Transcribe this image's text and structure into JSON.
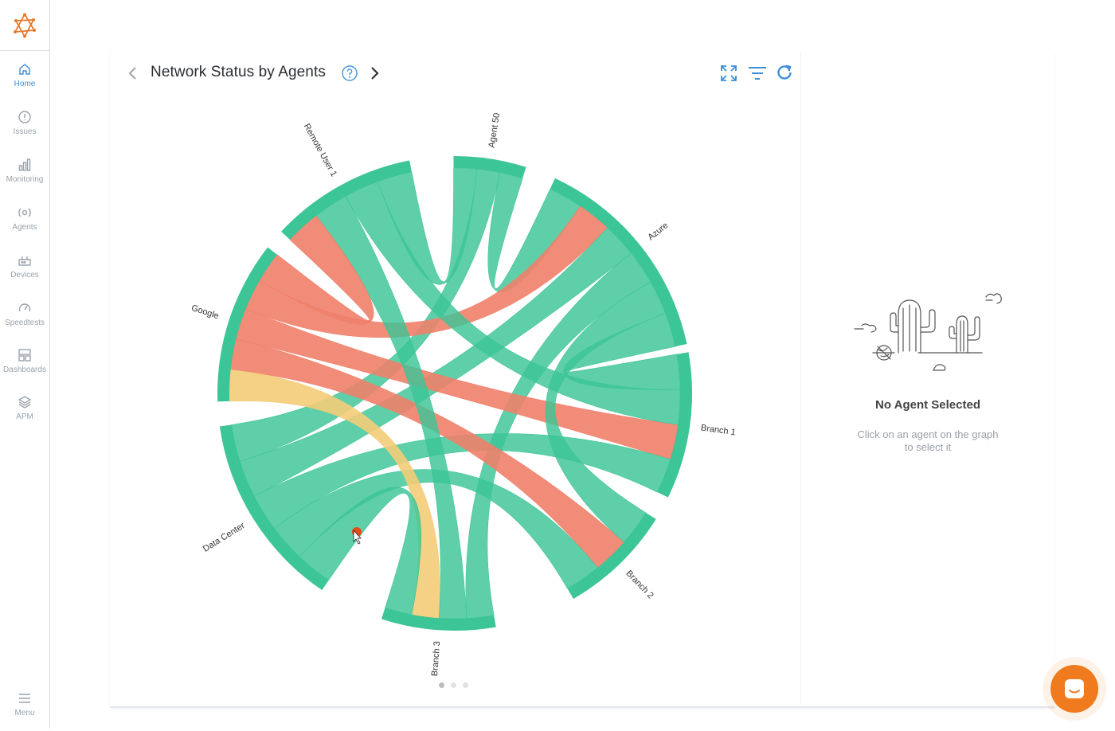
{
  "sidebar": {
    "items": [
      {
        "label": "Home",
        "icon": "home-icon",
        "active": true
      },
      {
        "label": "Issues",
        "icon": "alert-circle-icon",
        "active": false
      },
      {
        "label": "Monitoring",
        "icon": "bar-chart-icon",
        "active": false
      },
      {
        "label": "Agents",
        "icon": "broadcast-icon",
        "active": false
      },
      {
        "label": "Devices",
        "icon": "router-icon",
        "active": false
      },
      {
        "label": "Speedtests",
        "icon": "gauge-icon",
        "active": false
      },
      {
        "label": "Dashboards",
        "icon": "dashboard-icon",
        "active": false
      },
      {
        "label": "APM",
        "icon": "layers-icon",
        "active": false
      }
    ],
    "menu_label": "Menu"
  },
  "widget": {
    "title": "Network Status by Agents",
    "help_icon": "help-circle-icon",
    "toolbar_icons": [
      "expand-icon",
      "filter-icon",
      "refresh-icon"
    ],
    "pager_dots": 3,
    "active_dot": 0
  },
  "colors": {
    "ok": "#3cc596",
    "error": "#f0806a",
    "warning": "#f3cc78",
    "accent": "#3d8fd8",
    "chat": "#f07b1f"
  },
  "chart_data": {
    "type": "chord",
    "agents": [
      "Agent 50",
      "Azure",
      "Branch 1",
      "Branch 2",
      "Branch 3",
      "Data Center",
      "Google",
      "Remote User 1"
    ],
    "links": [
      {
        "source": "Agent 50",
        "target": "Azure",
        "status": "ok"
      },
      {
        "source": "Agent 50",
        "target": "Data Center",
        "status": "ok"
      },
      {
        "source": "Agent 50",
        "target": "Remote User 1",
        "status": "ok"
      },
      {
        "source": "Azure",
        "target": "Google",
        "status": "error"
      },
      {
        "source": "Azure",
        "target": "Branch 1",
        "status": "ok"
      },
      {
        "source": "Azure",
        "target": "Branch 3",
        "status": "ok"
      },
      {
        "source": "Azure",
        "target": "Data Center",
        "status": "ok"
      },
      {
        "source": "Branch 1",
        "target": "Google",
        "status": "error"
      },
      {
        "source": "Branch 1",
        "target": "Data Center",
        "status": "ok"
      },
      {
        "source": "Branch 1",
        "target": "Remote User 1",
        "status": "ok"
      },
      {
        "source": "Branch 2",
        "target": "Google",
        "status": "error"
      },
      {
        "source": "Branch 2",
        "target": "Data Center",
        "status": "ok"
      },
      {
        "source": "Branch 2",
        "target": "Azure",
        "status": "ok"
      },
      {
        "source": "Branch 3",
        "target": "Google",
        "status": "warning"
      },
      {
        "source": "Branch 3",
        "target": "Data Center",
        "status": "ok"
      },
      {
        "source": "Branch 3",
        "target": "Remote User 1",
        "status": "ok"
      },
      {
        "source": "Remote User 1",
        "target": "Google",
        "status": "error"
      }
    ]
  },
  "empty_state": {
    "title": "No Agent Selected",
    "subtitle": "Click on an agent on the graph to select it",
    "illustration": "desert-cactus-illustration"
  },
  "chat_icon": "chat-bubble-icon"
}
